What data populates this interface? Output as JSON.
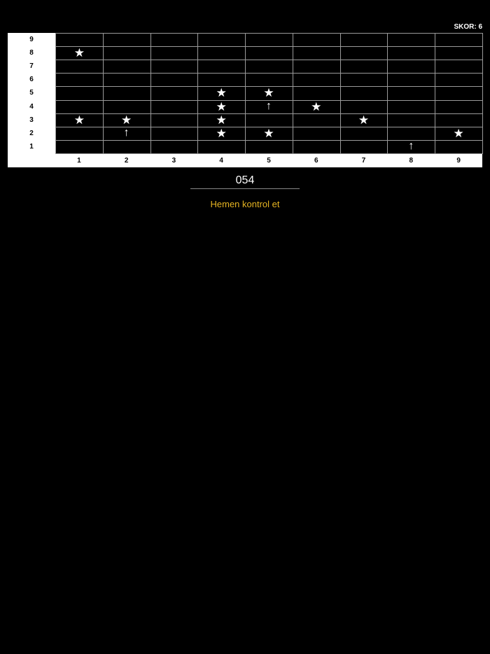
{
  "score_label": "SKOR: 6",
  "rows": [
    "9",
    "8",
    "7",
    "6",
    "5",
    "4",
    "3",
    "2",
    "1"
  ],
  "cols": [
    "1",
    "2",
    "3",
    "4",
    "5",
    "6",
    "7",
    "8",
    "9"
  ],
  "marks": [
    {
      "col": 1,
      "row": 8,
      "icon": "star"
    },
    {
      "col": 4,
      "row": 5,
      "icon": "star"
    },
    {
      "col": 5,
      "row": 5,
      "icon": "star"
    },
    {
      "col": 4,
      "row": 4,
      "icon": "star"
    },
    {
      "col": 5,
      "row": 4,
      "icon": "arrow-up"
    },
    {
      "col": 6,
      "row": 4,
      "icon": "star"
    },
    {
      "col": 1,
      "row": 3,
      "icon": "star"
    },
    {
      "col": 2,
      "row": 3,
      "icon": "star"
    },
    {
      "col": 4,
      "row": 3,
      "icon": "star"
    },
    {
      "col": 7,
      "row": 3,
      "icon": "star"
    },
    {
      "col": 2,
      "row": 2,
      "icon": "arrow-up"
    },
    {
      "col": 4,
      "row": 2,
      "icon": "star"
    },
    {
      "col": 5,
      "row": 2,
      "icon": "star"
    },
    {
      "col": 9,
      "row": 2,
      "icon": "star"
    },
    {
      "col": 8,
      "row": 1,
      "icon": "arrow-up"
    }
  ],
  "answer_value": "054",
  "check_label": "Hemen kontrol et",
  "colors": {
    "accent": "#e6b422",
    "caret": "#3355ff"
  }
}
